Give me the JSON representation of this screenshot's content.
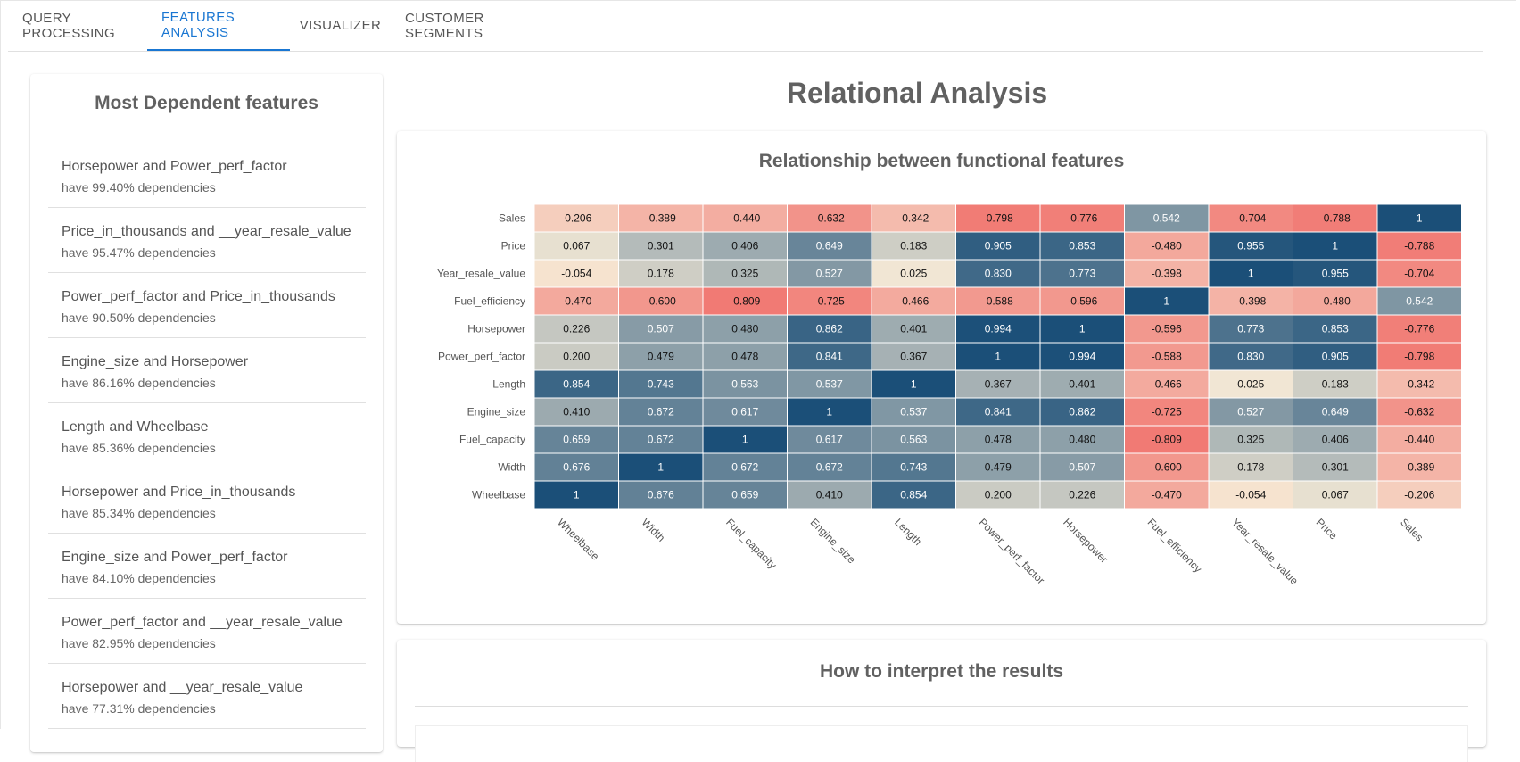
{
  "tabs": [
    {
      "label": "QUERY PROCESSING"
    },
    {
      "label": "FEATURES ANALYSIS"
    },
    {
      "label": "VISUALIZER"
    },
    {
      "label": "CUSTOMER SEGMENTS"
    }
  ],
  "active_tab": 1,
  "sidebar": {
    "title": "Most Dependent features",
    "items": [
      {
        "name": "Horsepower and Power_perf_factor",
        "value": "have 99.40% dependencies"
      },
      {
        "name": "Price_in_thousands and __year_resale_value",
        "value": "have 95.47% dependencies"
      },
      {
        "name": "Power_perf_factor and Price_in_thousands",
        "value": "have 90.50% dependencies"
      },
      {
        "name": "Engine_size and Horsepower",
        "value": "have 86.16% dependencies"
      },
      {
        "name": "Length and Wheelbase",
        "value": "have 85.36% dependencies"
      },
      {
        "name": "Horsepower and Price_in_thousands",
        "value": "have 85.34% dependencies"
      },
      {
        "name": "Engine_size and Power_perf_factor",
        "value": "have 84.10% dependencies"
      },
      {
        "name": "Power_perf_factor and __year_resale_value",
        "value": "have 82.95% dependencies"
      },
      {
        "name": "Horsepower and __year_resale_value",
        "value": "have 77.31% dependencies"
      }
    ]
  },
  "main": {
    "title": "Relational Analysis",
    "card1_title": "Relationship between functional features",
    "card2_title": "How to interpret the results"
  },
  "chart_data": {
    "type": "heatmap",
    "title": "",
    "y_labels": [
      "Sales",
      "Price",
      "Year_resale_value",
      "Fuel_efficiency",
      "Horsepower",
      "Power_perf_factor",
      "Length",
      "Engine_size",
      "Fuel_capacity",
      "Width",
      "Wheelbase"
    ],
    "x_labels": [
      "Wheelbase",
      "Width",
      "Fuel_capacity",
      "Engine_size",
      "Length",
      "Power_perf_factor",
      "Horsepower",
      "Fuel_efficiency",
      "Year_resale_value",
      "Price",
      "Sales"
    ],
    "value_labels": [
      [
        "-0.206",
        "-0.389",
        "-0.440",
        "-0.632",
        "-0.342",
        "-0.798",
        "-0.776",
        "0.542",
        "-0.704",
        "-0.788",
        "1"
      ],
      [
        "0.067",
        "0.301",
        "0.406",
        "0.649",
        "0.183",
        "0.905",
        "0.853",
        "-0.480",
        "0.955",
        "1",
        "-0.788"
      ],
      [
        "-0.054",
        "0.178",
        "0.325",
        "0.527",
        "0.025",
        "0.830",
        "0.773",
        "-0.398",
        "1",
        "0.955",
        "-0.704"
      ],
      [
        "-0.470",
        "-0.600",
        "-0.809",
        "-0.725",
        "-0.466",
        "-0.588",
        "-0.596",
        "1",
        "-0.398",
        "-0.480",
        "0.542"
      ],
      [
        "0.226",
        "0.507",
        "0.480",
        "0.862",
        "0.401",
        "0.994",
        "1",
        "-0.596",
        "0.773",
        "0.853",
        "-0.776"
      ],
      [
        "0.200",
        "0.479",
        "0.478",
        "0.841",
        "0.367",
        "1",
        "0.994",
        "-0.588",
        "0.830",
        "0.905",
        "-0.798"
      ],
      [
        "0.854",
        "0.743",
        "0.563",
        "0.537",
        "1",
        "0.367",
        "0.401",
        "-0.466",
        "0.025",
        "0.183",
        "-0.342"
      ],
      [
        "0.410",
        "0.672",
        "0.617",
        "1",
        "0.537",
        "0.841",
        "0.862",
        "-0.725",
        "0.527",
        "0.649",
        "-0.632"
      ],
      [
        "0.659",
        "0.672",
        "1",
        "0.617",
        "0.563",
        "0.478",
        "0.480",
        "-0.809",
        "0.325",
        "0.406",
        "-0.440"
      ],
      [
        "0.676",
        "1",
        "0.672",
        "0.672",
        "0.743",
        "0.479",
        "0.507",
        "-0.600",
        "0.178",
        "0.301",
        "-0.389"
      ],
      [
        "1",
        "0.676",
        "0.659",
        "0.410",
        "0.854",
        "0.200",
        "0.226",
        "-0.470",
        "-0.054",
        "0.067",
        "-0.206"
      ]
    ],
    "color_scale": {
      "negative": "#f0605d",
      "neutral": "#f6ead6",
      "positive": "#1b4f78"
    }
  }
}
